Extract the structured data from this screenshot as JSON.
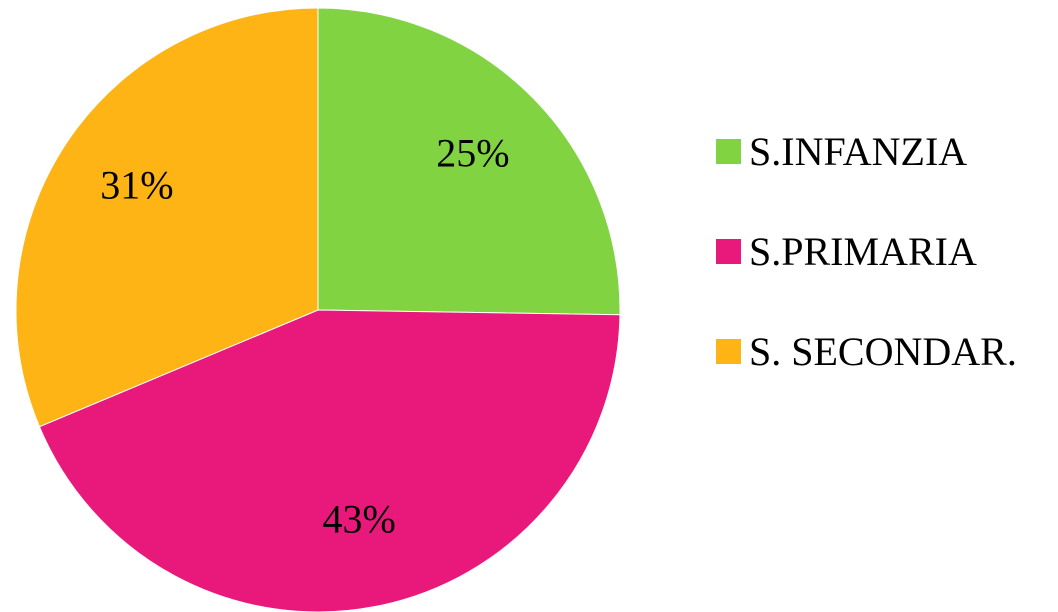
{
  "chart_data": {
    "type": "pie",
    "categories": [
      "S.INFANZIA",
      "S.PRIMARIA",
      "S. SECONDAR."
    ],
    "values": [
      25,
      43,
      31
    ],
    "value_labels": [
      "25%",
      "43%",
      "31%"
    ],
    "colors": [
      "#82d341",
      "#e8197b",
      "#fdb414"
    ],
    "legend": "right"
  }
}
